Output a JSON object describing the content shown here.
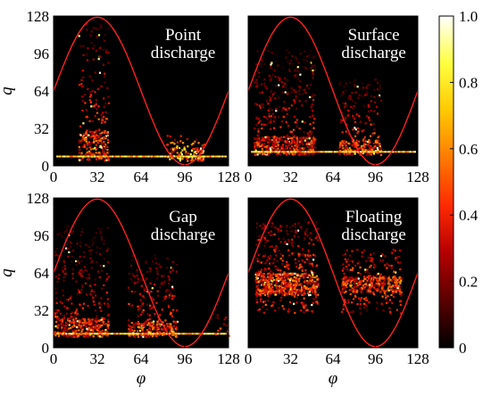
{
  "chart_data": {
    "type": "heatmap",
    "description_free": true,
    "x_ticks": [
      "0",
      "32",
      "64",
      "96",
      "128"
    ],
    "y_ticks": [
      "0",
      "32",
      "64",
      "96",
      "128"
    ],
    "xlabel": "φ",
    "ylabel": "q",
    "xlim": [
      0,
      128
    ],
    "ylim": [
      0,
      128
    ],
    "reference_curve": {
      "form": "sinusoid",
      "center": 64,
      "amplitude": 63,
      "peak_phase": 32
    },
    "colorbar": {
      "range": [
        0,
        1
      ],
      "ticks": [
        "0",
        "0.2",
        "0.4",
        "0.6",
        "0.8",
        "1.0"
      ],
      "colors": [
        "#000000",
        "#5a0000",
        "#b40000",
        "#ff2a00",
        "#ff7a00",
        "#ffc800",
        "#ffff40",
        "#ffffff"
      ]
    },
    "curve_color": "#ff2020",
    "panels": [
      {
        "title_line1": "Point",
        "title_line2": "discharge",
        "clusters": [
          {
            "x_range": [
              18,
              40
            ],
            "y_range": [
              5,
              122
            ],
            "y_peak": 18,
            "density": 1.0,
            "intensity": 0.45
          },
          {
            "x_range": [
              82,
              110
            ],
            "y_range": [
              5,
              27
            ],
            "y_peak": 10,
            "density": 1.6,
            "intensity": 0.75
          }
        ],
        "band_y": 8
      },
      {
        "title_line1": "Surface",
        "title_line2": "discharge",
        "clusters": [
          {
            "x_range": [
              4,
              50
            ],
            "y_range": [
              10,
              100
            ],
            "y_peak": 15,
            "density": 1.4,
            "intensity": 0.4
          },
          {
            "x_range": [
              68,
              100
            ],
            "y_range": [
              10,
              75
            ],
            "y_peak": 15,
            "density": 1.3,
            "intensity": 0.45
          }
        ],
        "band_y": 12
      },
      {
        "title_line1": "Gap",
        "title_line2": "discharge",
        "clusters": [
          {
            "x_range": [
              0,
              40
            ],
            "y_range": [
              10,
              105
            ],
            "y_peak": 15,
            "density": 1.3,
            "intensity": 0.4
          },
          {
            "x_range": [
              54,
              90
            ],
            "y_range": [
              10,
              80
            ],
            "y_peak": 15,
            "density": 1.3,
            "intensity": 0.45
          },
          {
            "x_range": [
              118,
              128
            ],
            "y_range": [
              10,
              30
            ],
            "y_peak": 15,
            "density": 0.8,
            "intensity": 0.4
          }
        ],
        "band_y": 12
      },
      {
        "title_line1": "Floating",
        "title_line2": "discharge",
        "clusters": [
          {
            "x_range": [
              5,
              52
            ],
            "y_range": [
              30,
              108
            ],
            "y_peak": 55,
            "density": 1.8,
            "intensity": 0.45
          },
          {
            "x_range": [
              70,
              115
            ],
            "y_range": [
              30,
              85
            ],
            "y_peak": 55,
            "density": 1.5,
            "intensity": 0.45
          }
        ],
        "band_y": 0
      }
    ]
  }
}
